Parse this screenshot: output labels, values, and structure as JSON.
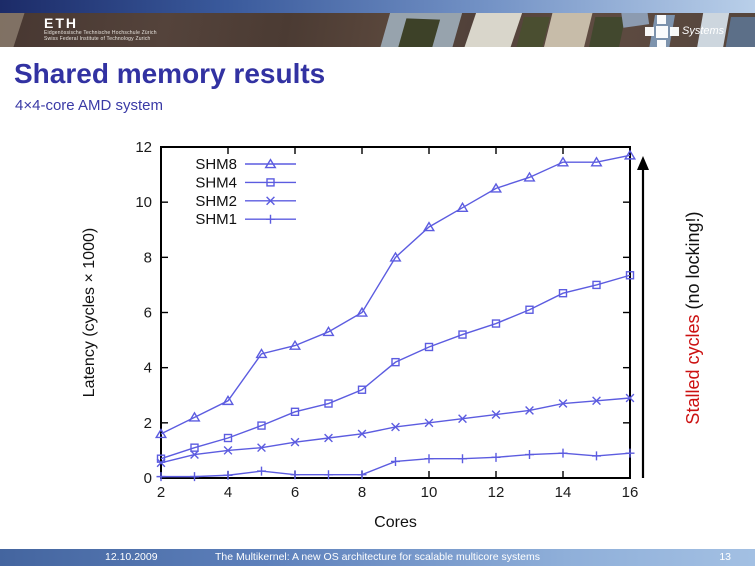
{
  "header": {
    "eth": {
      "acronym": "ETH",
      "line1": "Eidgenössische Technische Hochschule Zürich",
      "line2": "Swiss Federal Institute of Technology Zurich"
    },
    "systems_label": "Systems"
  },
  "slide": {
    "title": "Shared memory results",
    "subtitle": "4×4-core AMD system"
  },
  "annotation": {
    "red_text": "Stalled cycles",
    "black_text": " (no locking!)"
  },
  "footer": {
    "date": "12.10.2009",
    "title": "The Multikernel: A new OS architecture for scalable multicore systems",
    "page": "13"
  },
  "colors": {
    "title_blue": "#3232a2",
    "line_blue": "#5c5ce0",
    "stalled_red": "#cc1111",
    "frame_black": "#000000",
    "footer_blue_left": "#44659f",
    "footer_blue_right": "#a3c0e3"
  },
  "chart_data": {
    "type": "line",
    "title": "",
    "xlabel": "Cores",
    "ylabel": "Latency (cycles × 1000)",
    "x": [
      2,
      3,
      4,
      5,
      6,
      7,
      8,
      9,
      10,
      11,
      12,
      13,
      14,
      15,
      16
    ],
    "xlim": [
      2,
      16
    ],
    "ylim": [
      0,
      12
    ],
    "xticks": [
      2,
      4,
      6,
      8,
      10,
      12,
      14,
      16
    ],
    "yticks": [
      0,
      2,
      4,
      6,
      8,
      10,
      12
    ],
    "grid": false,
    "legend_position": "top-left",
    "line_color": "#5c5ce0",
    "series": [
      {
        "name": "SHM8",
        "marker": "triangle",
        "values": [
          1.6,
          2.2,
          2.8,
          4.5,
          4.8,
          5.3,
          6.0,
          8.0,
          9.1,
          9.8,
          10.5,
          10.9,
          11.45,
          11.45,
          11.7
        ]
      },
      {
        "name": "SHM4",
        "marker": "square",
        "values": [
          0.7,
          1.1,
          1.45,
          1.9,
          2.4,
          2.7,
          3.2,
          4.2,
          4.75,
          5.2,
          5.6,
          6.1,
          6.7,
          7.0,
          7.35
        ]
      },
      {
        "name": "SHM2",
        "marker": "x",
        "values": [
          0.55,
          0.85,
          1.0,
          1.1,
          1.3,
          1.45,
          1.6,
          1.85,
          2.0,
          2.15,
          2.3,
          2.45,
          2.7,
          2.8,
          2.9
        ]
      },
      {
        "name": "SHM1",
        "marker": "plus",
        "values": [
          0.05,
          0.05,
          0.1,
          0.25,
          0.12,
          0.12,
          0.12,
          0.6,
          0.7,
          0.7,
          0.75,
          0.85,
          0.9,
          0.8,
          0.9
        ]
      }
    ]
  }
}
